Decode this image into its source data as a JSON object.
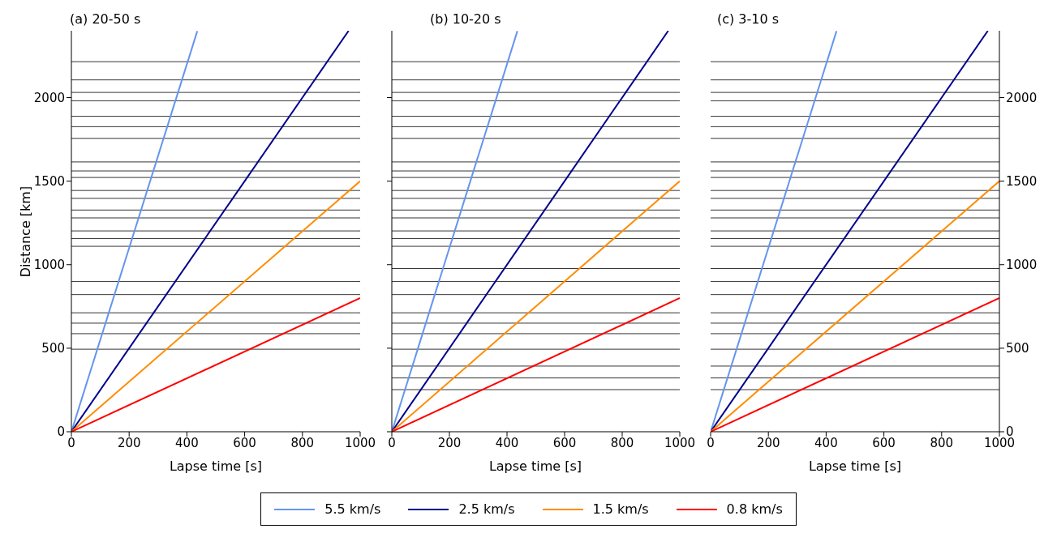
{
  "chart_data": [
    {
      "type": "line",
      "title": "(a) 20-50 s",
      "xlabel": "Lapse time [s]",
      "ylabel": "Distance [km]",
      "xlim": [
        0,
        1000
      ],
      "xticks": [
        0,
        200,
        400,
        600,
        800,
        1000
      ],
      "ylim": [
        0,
        2400
      ],
      "yticks": [
        0,
        500,
        1000,
        1500,
        2000
      ],
      "grid": false,
      "legend": "bottom",
      "marker": "none",
      "series": [
        {
          "name": "5.5 km/s",
          "color": "#6495ed",
          "x": [
            0,
            436
          ],
          "values": [
            0,
            2398
          ]
        },
        {
          "name": "2.5 km/s",
          "color": "#00008b",
          "x": [
            0,
            960
          ],
          "values": [
            0,
            2400
          ]
        },
        {
          "name": "1.5 km/s",
          "color": "#ff8c00",
          "x": [
            0,
            1000
          ],
          "values": [
            0,
            1500
          ]
        },
        {
          "name": "0.8 km/s",
          "color": "#ff0000",
          "x": [
            0,
            1000
          ],
          "values": [
            0,
            800
          ]
        }
      ],
      "ref_lines": [
        {
          "axis": "y",
          "value": 2215,
          "color": "#000000"
        },
        {
          "axis": "y",
          "value": 2106,
          "color": "#000000"
        },
        {
          "axis": "y",
          "value": 2031,
          "color": "#000000"
        },
        {
          "axis": "y",
          "value": 1981,
          "color": "#000000"
        },
        {
          "axis": "y",
          "value": 1888,
          "color": "#000000"
        },
        {
          "axis": "y",
          "value": 1826,
          "color": "#000000"
        },
        {
          "axis": "y",
          "value": 1756,
          "color": "#000000"
        },
        {
          "axis": "y",
          "value": 1615,
          "color": "#000000"
        },
        {
          "axis": "y",
          "value": 1561,
          "color": "#000000"
        },
        {
          "axis": "y",
          "value": 1522,
          "color": "#000000"
        },
        {
          "axis": "y",
          "value": 1444,
          "color": "#000000"
        },
        {
          "axis": "y",
          "value": 1397,
          "color": "#000000"
        },
        {
          "axis": "y",
          "value": 1327,
          "color": "#000000"
        },
        {
          "axis": "y",
          "value": 1280,
          "color": "#000000"
        },
        {
          "axis": "y",
          "value": 1202,
          "color": "#000000"
        },
        {
          "axis": "y",
          "value": 1156,
          "color": "#000000"
        },
        {
          "axis": "y",
          "value": 1110,
          "color": "#000000"
        },
        {
          "axis": "y",
          "value": 899,
          "color": "#000000"
        },
        {
          "axis": "y",
          "value": 821,
          "color": "#000000"
        },
        {
          "axis": "y",
          "value": 712,
          "color": "#000000"
        },
        {
          "axis": "y",
          "value": 650,
          "color": "#000000"
        },
        {
          "axis": "y",
          "value": 587,
          "color": "#000000"
        },
        {
          "axis": "y",
          "value": 494,
          "color": "#000000"
        }
      ]
    },
    {
      "type": "line",
      "title": "(b) 10-20 s",
      "xlabel": "Lapse time [s]",
      "xlim": [
        0,
        1000
      ],
      "xticks": [
        0,
        200,
        400,
        600,
        800,
        1000
      ],
      "ylim": [
        0,
        2400
      ],
      "yticks": [
        {
          "value": 0,
          "label": null
        },
        {
          "value": 500,
          "label": null
        },
        {
          "value": 1000,
          "label": null
        },
        {
          "value": 1500,
          "label": null
        },
        {
          "value": 2000,
          "label": null
        }
      ],
      "tick_labels": "x",
      "grid": false,
      "marker": "none",
      "series": [
        {
          "color": "#6495ed",
          "x": [
            0,
            436
          ],
          "values": [
            0,
            2398
          ]
        },
        {
          "color": "#00008b",
          "x": [
            0,
            960
          ],
          "values": [
            0,
            2400
          ]
        },
        {
          "color": "#ff8c00",
          "x": [
            0,
            1000
          ],
          "values": [
            0,
            1500
          ]
        },
        {
          "color": "#ff0000",
          "x": [
            0,
            1000
          ],
          "values": [
            0,
            800
          ]
        }
      ],
      "ref_lines": [
        {
          "axis": "y",
          "value": 2215,
          "color": "#000000"
        },
        {
          "axis": "y",
          "value": 2106,
          "color": "#000000"
        },
        {
          "axis": "y",
          "value": 2031,
          "color": "#000000"
        },
        {
          "axis": "y",
          "value": 1981,
          "color": "#000000"
        },
        {
          "axis": "y",
          "value": 1888,
          "color": "#000000"
        },
        {
          "axis": "y",
          "value": 1826,
          "color": "#000000"
        },
        {
          "axis": "y",
          "value": 1756,
          "color": "#000000"
        },
        {
          "axis": "y",
          "value": 1615,
          "color": "#000000"
        },
        {
          "axis": "y",
          "value": 1561,
          "color": "#000000"
        },
        {
          "axis": "y",
          "value": 1522,
          "color": "#000000"
        },
        {
          "axis": "y",
          "value": 1444,
          "color": "#000000"
        },
        {
          "axis": "y",
          "value": 1397,
          "color": "#000000"
        },
        {
          "axis": "y",
          "value": 1327,
          "color": "#000000"
        },
        {
          "axis": "y",
          "value": 1280,
          "color": "#000000"
        },
        {
          "axis": "y",
          "value": 1202,
          "color": "#000000"
        },
        {
          "axis": "y",
          "value": 1156,
          "color": "#000000"
        },
        {
          "axis": "y",
          "value": 1110,
          "color": "#000000"
        },
        {
          "axis": "y",
          "value": 977,
          "color": "#000000"
        },
        {
          "axis": "y",
          "value": 899,
          "color": "#000000"
        },
        {
          "axis": "y",
          "value": 821,
          "color": "#000000"
        },
        {
          "axis": "y",
          "value": 712,
          "color": "#000000"
        },
        {
          "axis": "y",
          "value": 650,
          "color": "#000000"
        },
        {
          "axis": "y",
          "value": 587,
          "color": "#000000"
        },
        {
          "axis": "y",
          "value": 494,
          "color": "#000000"
        },
        {
          "axis": "y",
          "value": 393,
          "color": "#000000"
        },
        {
          "axis": "y",
          "value": 322,
          "color": "#000000"
        },
        {
          "axis": "y",
          "value": 252,
          "color": "#000000"
        }
      ]
    },
    {
      "type": "line",
      "title": "(c) 3-10 s",
      "xlabel": "Lapse time [s]",
      "xlim": [
        0,
        1000
      ],
      "xticks": [
        0,
        200,
        400,
        600,
        800,
        1000
      ],
      "y2lim": [
        0,
        2400
      ],
      "y2ticks": [
        0,
        500,
        1000,
        1500,
        2000
      ],
      "grid": false,
      "marker": "none",
      "series": [
        {
          "color": "#6495ed",
          "axis": "y2",
          "x": [
            0,
            436
          ],
          "values": [
            0,
            2398
          ]
        },
        {
          "color": "#00008b",
          "axis": "y2",
          "x": [
            0,
            960
          ],
          "values": [
            0,
            2400
          ]
        },
        {
          "color": "#ff8c00",
          "axis": "y2",
          "x": [
            0,
            1000
          ],
          "values": [
            0,
            1500
          ]
        },
        {
          "color": "#ff0000",
          "axis": "y2",
          "x": [
            0,
            1000
          ],
          "values": [
            0,
            800
          ]
        }
      ],
      "ref_lines": [
        {
          "axis": "y2",
          "value": 2215,
          "color": "#000000"
        },
        {
          "axis": "y2",
          "value": 2106,
          "color": "#000000"
        },
        {
          "axis": "y2",
          "value": 2031,
          "color": "#000000"
        },
        {
          "axis": "y2",
          "value": 1981,
          "color": "#000000"
        },
        {
          "axis": "y2",
          "value": 1888,
          "color": "#000000"
        },
        {
          "axis": "y2",
          "value": 1826,
          "color": "#000000"
        },
        {
          "axis": "y2",
          "value": 1756,
          "color": "#000000"
        },
        {
          "axis": "y2",
          "value": 1615,
          "color": "#000000"
        },
        {
          "axis": "y2",
          "value": 1561,
          "color": "#000000"
        },
        {
          "axis": "y2",
          "value": 1522,
          "color": "#000000"
        },
        {
          "axis": "y2",
          "value": 1444,
          "color": "#000000"
        },
        {
          "axis": "y2",
          "value": 1397,
          "color": "#000000"
        },
        {
          "axis": "y2",
          "value": 1327,
          "color": "#000000"
        },
        {
          "axis": "y2",
          "value": 1280,
          "color": "#000000"
        },
        {
          "axis": "y2",
          "value": 1202,
          "color": "#000000"
        },
        {
          "axis": "y2",
          "value": 1156,
          "color": "#000000"
        },
        {
          "axis": "y2",
          "value": 1110,
          "color": "#000000"
        },
        {
          "axis": "y2",
          "value": 977,
          "color": "#000000"
        },
        {
          "axis": "y2",
          "value": 899,
          "color": "#000000"
        },
        {
          "axis": "y2",
          "value": 821,
          "color": "#000000"
        },
        {
          "axis": "y2",
          "value": 712,
          "color": "#000000"
        },
        {
          "axis": "y2",
          "value": 650,
          "color": "#000000"
        },
        {
          "axis": "y2",
          "value": 587,
          "color": "#000000"
        },
        {
          "axis": "y2",
          "value": 494,
          "color": "#000000"
        },
        {
          "axis": "y2",
          "value": 393,
          "color": "#000000"
        },
        {
          "axis": "y2",
          "value": 322,
          "color": "#000000"
        },
        {
          "axis": "y2",
          "value": 252,
          "color": "#000000"
        }
      ]
    }
  ]
}
